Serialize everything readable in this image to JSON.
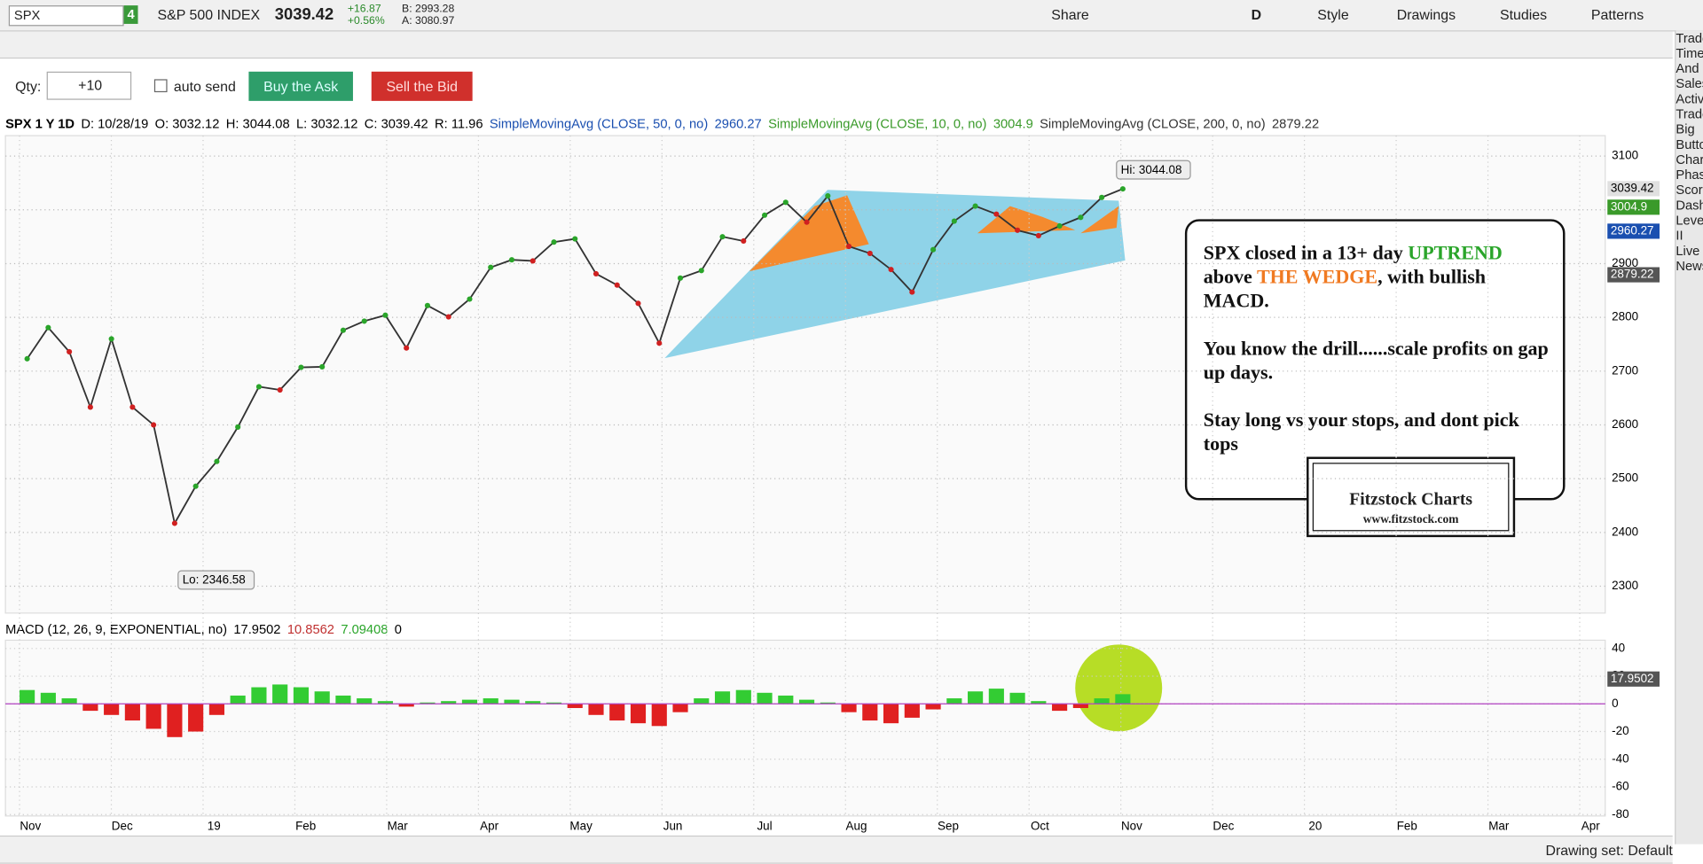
{
  "toolbar": {
    "symbol": "SPX",
    "badge": "4",
    "description": "S&P 500 INDEX",
    "last": "3039.42",
    "change": "+16.87",
    "change_pct": "+0.56%",
    "bid": "B: 2993.28",
    "ask": "A: 3080.97",
    "buttons": [
      "Share",
      "D",
      "Style",
      "Drawings",
      "Studies",
      "Patterns"
    ]
  },
  "trade": {
    "qty_label": "Qty:",
    "qty": "+10",
    "auto_send": "auto send",
    "buy": "Buy the Ask",
    "sell": "Sell the Bid"
  },
  "price_chart": {
    "type": "line",
    "header": [
      "SPX 1 Y 1D",
      "D: 10/28/19",
      "O: 3032.12",
      "H: 3044.08",
      "L: 3032.12",
      "C: 3039.42",
      "R: 11.96",
      "SimpleMovingAvg (CLOSE, 50, 0, no)",
      "2960.27",
      "SimpleMovingAvg (CLOSE, 10, 0, no)",
      "3004.9",
      "SimpleMovingAvg (CLOSE, 200, 0, no)",
      "2879.22"
    ],
    "values": [
      2723,
      2781,
      2736,
      2633,
      2760,
      2633,
      2600,
      2417,
      2486,
      2532,
      2596,
      2671,
      2665,
      2707,
      2708,
      2776,
      2793,
      2804,
      2743,
      2822,
      2801,
      2834,
      2893,
      2907,
      2905,
      2940,
      2946,
      2881,
      2860,
      2826,
      2752,
      2873,
      2887,
      2950,
      2942,
      2990,
      3014,
      2977,
      3026,
      2932,
      2919,
      2889,
      2847,
      2926,
      2979,
      3007,
      2992,
      2962,
      2952,
      2970,
      2986,
      3023,
      3039
    ],
    "color": "#333333",
    "ylim": [
      2250,
      3138
    ],
    "yticks": [
      2300,
      2400,
      2500,
      2600,
      2700,
      2800,
      2900,
      3000,
      3100
    ],
    "grid": true,
    "x_labels": [
      "Nov",
      "Dec",
      "19",
      "Feb",
      "Mar",
      "Apr",
      "May",
      "Jun",
      "Jul",
      "Aug",
      "Sep",
      "Oct",
      "Nov",
      "Dec",
      "20",
      "Feb",
      "Mar",
      "Apr"
    ],
    "price_labels": [
      "3039.42",
      "3004.9",
      "2960.27",
      "2879.22"
    ],
    "hi_label": "Hi: 3044.08",
    "lo_label": "Lo: 2346.58"
  },
  "macd_chart": {
    "type": "bar",
    "header": [
      "MACD (12, 26, 9, EXPONENTIAL, no)",
      "17.9502",
      "10.8562",
      "7.09408",
      "0"
    ],
    "values": [
      10,
      8,
      4,
      -5,
      -8,
      -12,
      -18,
      -24,
      -20,
      -8,
      6,
      12,
      14,
      12,
      9,
      6,
      4,
      2,
      -2,
      1,
      2,
      3,
      4,
      3,
      2,
      1,
      -3,
      -8,
      -12,
      -14,
      -16,
      -6,
      4,
      9,
      10,
      8,
      6,
      3,
      1,
      -6,
      -12,
      -14,
      -10,
      -4,
      4,
      9,
      11,
      8,
      2,
      -5,
      -3,
      4,
      7
    ],
    "ylim": [
      -81,
      46
    ],
    "yticks": [
      40,
      20,
      0,
      -20,
      -40,
      -60,
      -80
    ],
    "grid": true,
    "last_label": "17.9502"
  },
  "annotation": {
    "line1": "SPX closed in a 13+ day",
    "uptrend": "UPTREND",
    "above": "above",
    "wedge": "THE WEDGE",
    "rest": ", with bullish MACD.",
    "p2": "You know the drill......scale profits on gap up days.",
    "p3": "Stay long vs your stops, and dont pick tops"
  },
  "logo": {
    "name": "Fitzstock Charts",
    "url": "www.fitzstock.com"
  },
  "side_tabs": [
    "Trade",
    "Times And Sales",
    "Active Trader",
    "Big Buttons",
    "Chart",
    "Phase Scores",
    "Dashboard",
    "Level II",
    "Live News"
  ],
  "footer": {
    "drawing_set": "Drawing set: Default"
  }
}
